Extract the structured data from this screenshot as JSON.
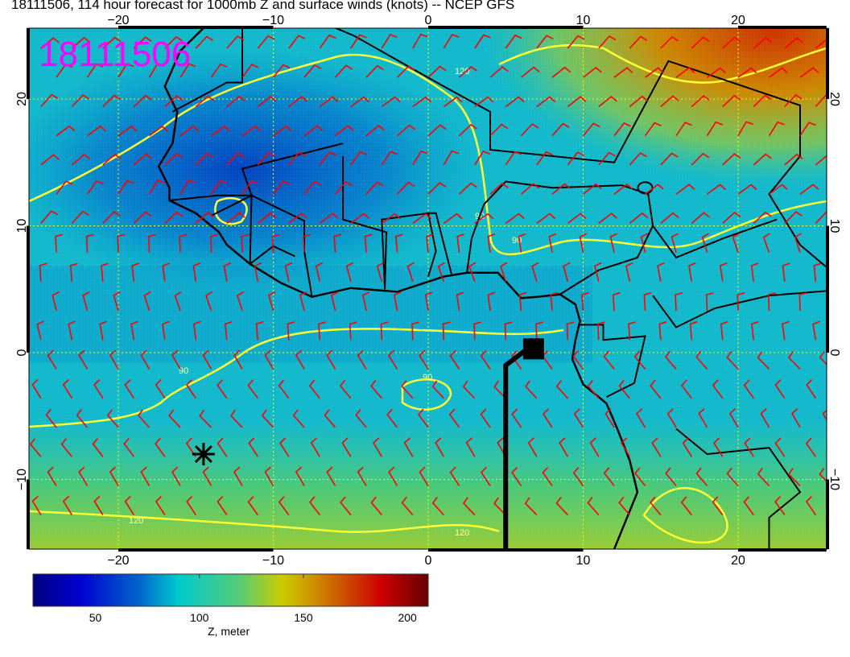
{
  "title": "18111506, 114 hour forecast for 1000mb Z and surface winds (knots) -- NCEP GFS",
  "overlay_label": "18111506",
  "map": {
    "lon_range": [
      -25.8,
      25.7
    ],
    "lat_range": [
      -15.5,
      25.6
    ],
    "lon_ticks": [
      -20,
      -10,
      0,
      10,
      20
    ],
    "lat_ticks": [
      -10,
      0,
      10,
      20
    ],
    "lon_tick_labels": [
      "−20",
      "−10",
      "0",
      "10",
      "20"
    ],
    "lat_tick_labels": [
      "−10",
      "0",
      "10",
      "20"
    ],
    "gridlines": true,
    "field": "1000mb geopotential height (Z)",
    "contour_labels": [
      "90",
      "90",
      "90",
      "90",
      "120",
      "120",
      "120"
    ],
    "contour_color": "#ffff33",
    "wind_barb_color": "#ff0000",
    "markers": [
      {
        "type": "asterisk",
        "lon": -14.5,
        "lat": -8
      },
      {
        "type": "square",
        "lon": 6.8,
        "lat": 0.3
      }
    ]
  },
  "colorbar": {
    "range": [
      20,
      210
    ],
    "ticks": [
      50,
      100,
      150,
      200
    ],
    "tick_labels": [
      "50",
      "100",
      "150",
      "200"
    ],
    "label": "Z, meter",
    "colors": [
      "#000080",
      "#0000d0",
      "#0066cc",
      "#00cccc",
      "#55cc77",
      "#cccc00",
      "#cc7700",
      "#cc0000",
      "#660000"
    ]
  }
}
